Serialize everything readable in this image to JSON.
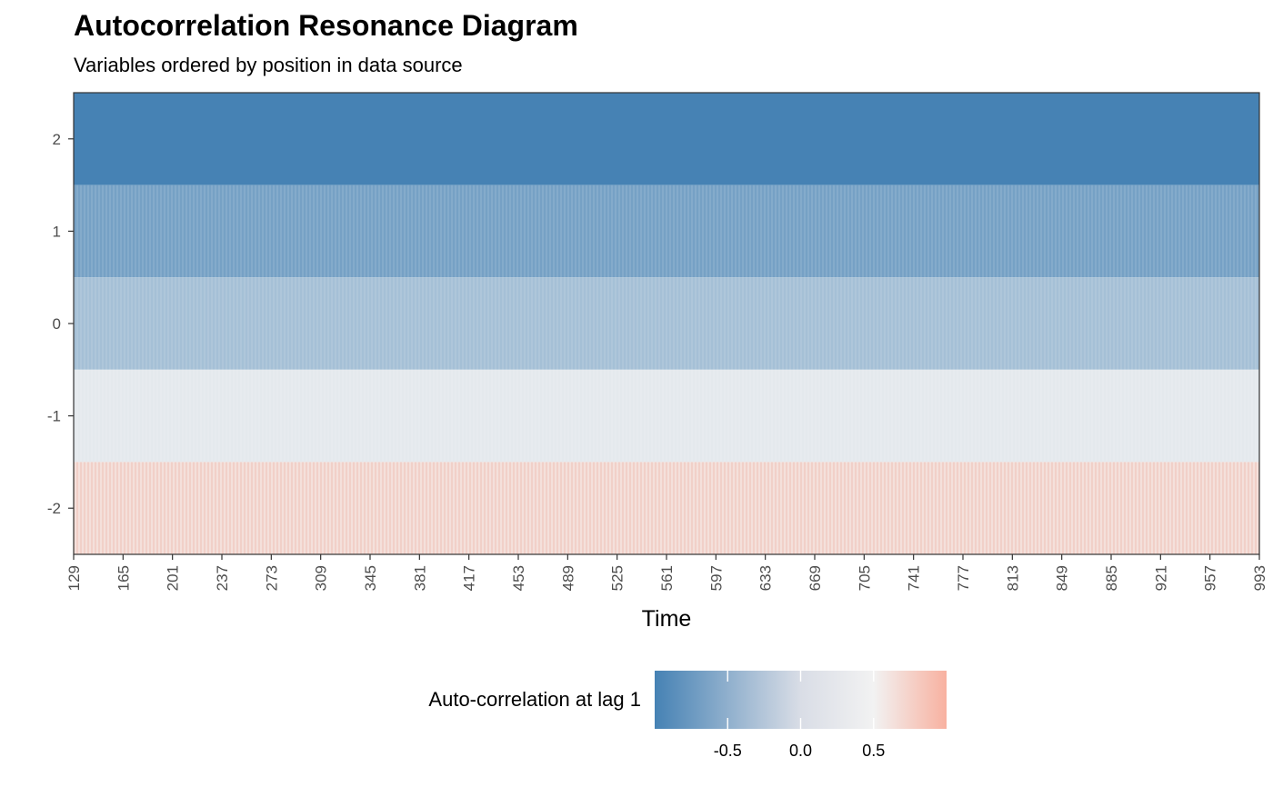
{
  "chart_data": {
    "type": "heatmap",
    "title": "Autocorrelation Resonance Diagram",
    "subtitle": "Variables ordered by position in data source",
    "xlabel": "Time",
    "ylabel": "",
    "x_range": [
      129,
      993
    ],
    "x_ticks": [
      "129",
      "165",
      "201",
      "237",
      "273",
      "309",
      "345",
      "381",
      "417",
      "453",
      "489",
      "525",
      "561",
      "597",
      "633",
      "669",
      "705",
      "741",
      "777",
      "813",
      "849",
      "885",
      "921",
      "957",
      "993"
    ],
    "y_ticks": [
      "2",
      "1",
      "0",
      "-1",
      "-2"
    ],
    "rows": [
      {
        "y": 2,
        "value": -1.0
      },
      {
        "y": 1,
        "value": -0.72
      },
      {
        "y": 0,
        "value": -0.45
      },
      {
        "y": -1,
        "value": -0.08
      },
      {
        "y": -2,
        "value": 0.28
      }
    ],
    "grid": false,
    "legend": {
      "title": "Auto-correlation at lag 1",
      "position": "bottom",
      "ticks": [
        "-0.5",
        "0.0",
        "0.5"
      ],
      "tick_values": [
        -0.5,
        0.0,
        0.5
      ],
      "range": [
        -1.0,
        1.0
      ],
      "colors": {
        "low": "#4682B4",
        "mid": "#F2F2F2",
        "high": "#F8B1A0"
      }
    }
  }
}
